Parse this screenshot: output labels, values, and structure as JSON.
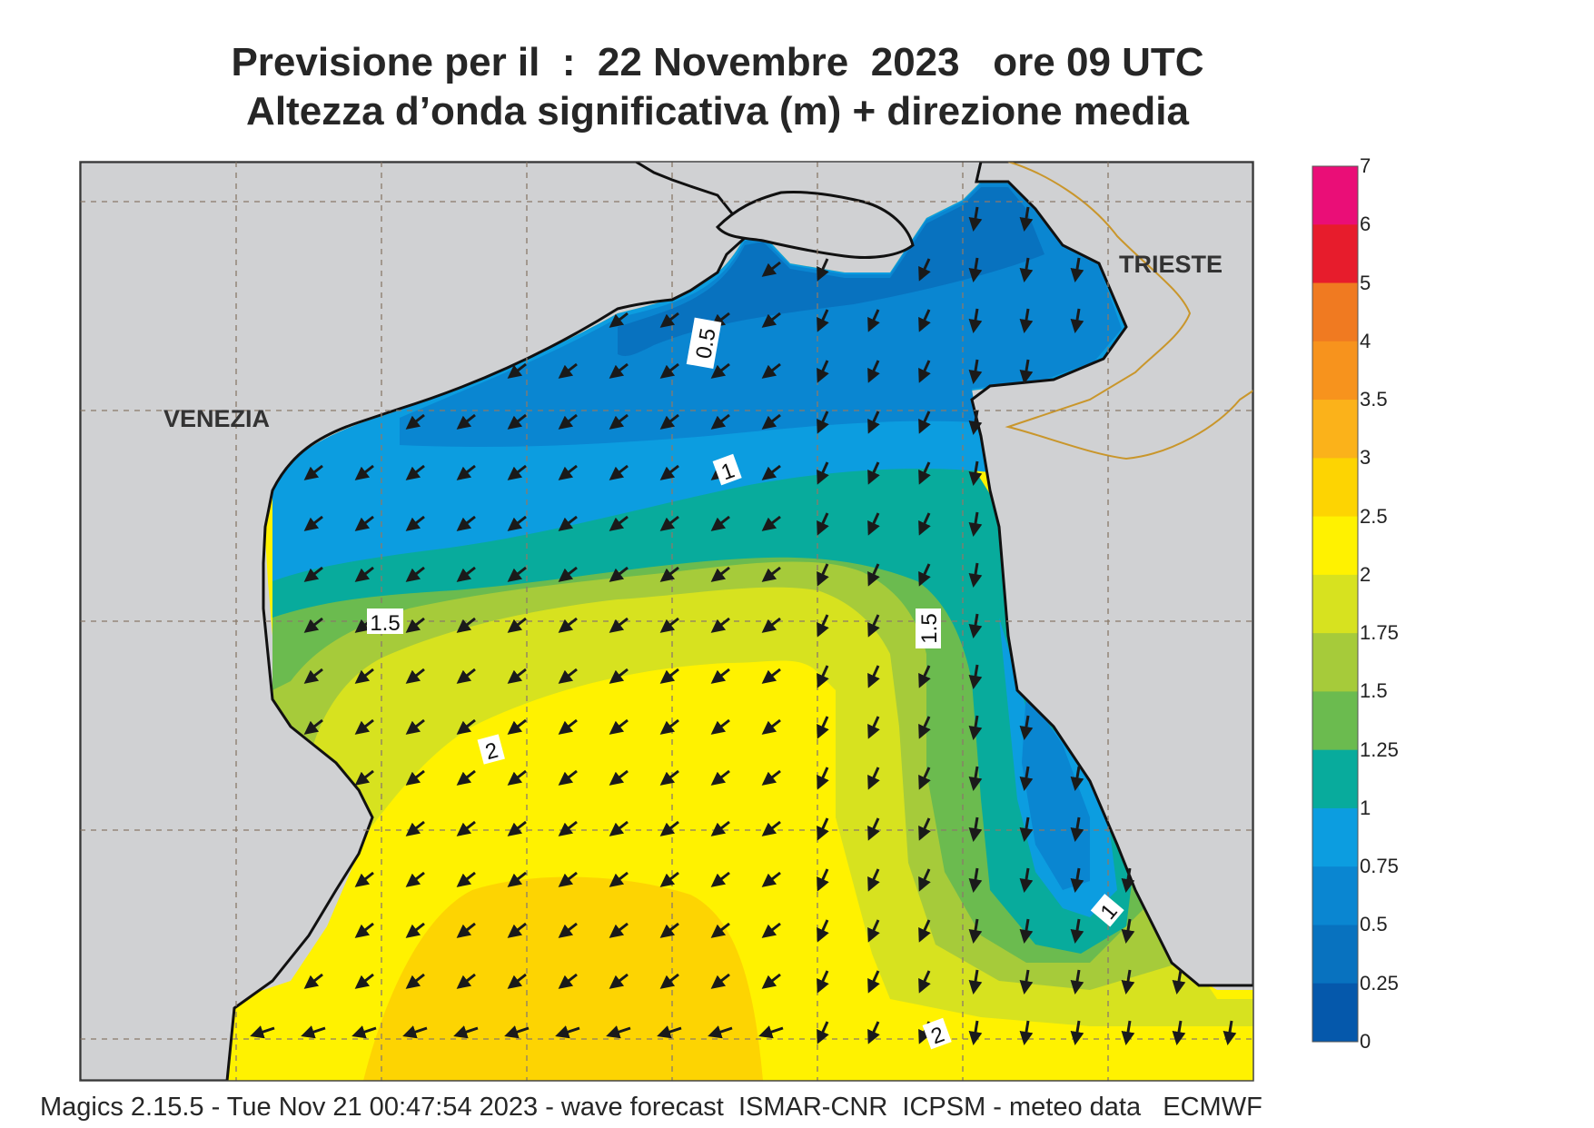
{
  "title": {
    "line1": "Previsione per il  :  22 Novembre  2023   ore 09 UTC",
    "line2": "Altezza d’onda significativa (m) + direzione media"
  },
  "footer": "Magics 2.15.5 - Tue Nov 21 00:47:54 2023 - wave forecast  ISMAR-CNR  ICPSM - meteo data   ECMWF",
  "places": {
    "venezia": "VENEZIA",
    "trieste": "TRIESTE"
  },
  "contour_labels": [
    "0.5",
    "1",
    "1.5",
    "1.5",
    "2",
    "2",
    "1"
  ],
  "legend": {
    "ticks": [
      "7",
      "6",
      "5",
      "4",
      "3.5",
      "3",
      "2.5",
      "2",
      "1.75",
      "1.5",
      "1.25",
      "1",
      "0.75",
      "0.5",
      "0.25",
      "0"
    ],
    "colors": [
      "#ea0e77",
      "#e71c2c",
      "#f07a21",
      "#f7931d",
      "#fbb21a",
      "#fdd402",
      "#fff200",
      "#d7e21f",
      "#a6cb3a",
      "#6bbb4f",
      "#08ab9c",
      "#0c9de0",
      "#0a86d1",
      "#0872bf",
      "#0558ab"
    ]
  },
  "land_color": "#d0d1d3",
  "mean_wave_direction": "southwest"
}
